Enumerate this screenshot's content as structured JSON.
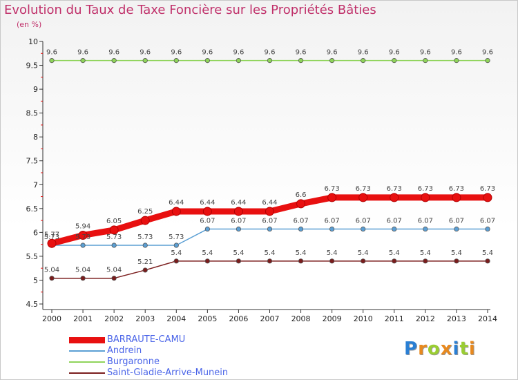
{
  "title": "Evolution du Taux de Taxe Foncière sur les Propriétés Bâties",
  "subtitle": "(en %)",
  "brand": {
    "letters": [
      "P",
      "r",
      "o",
      "x",
      "i",
      "t",
      "i"
    ],
    "colors": [
      "#2a7fd4",
      "#e8891e",
      "#9acd32",
      "#e8891e",
      "#2a7fd4",
      "#9acd32",
      "#e8891e"
    ]
  },
  "chart_data": {
    "type": "line",
    "x": [
      "2000",
      "2001",
      "2002",
      "2003",
      "2004",
      "2005",
      "2006",
      "2007",
      "2008",
      "2009",
      "2010",
      "2011",
      "2012",
      "2013",
      "2014"
    ],
    "ylim": [
      4.5,
      10
    ],
    "yticks": [
      "4.5",
      "5",
      "5.5",
      "6",
      "6.5",
      "7",
      "7.5",
      "8",
      "8.5",
      "9",
      "9.5",
      "10"
    ],
    "grid": false,
    "legend": "bottom-left",
    "series": [
      {
        "name": "Burgaronne",
        "color": "#8fd45a",
        "values": [
          9.6,
          9.6,
          9.6,
          9.6,
          9.6,
          9.6,
          9.6,
          9.6,
          9.6,
          9.6,
          9.6,
          9.6,
          9.6,
          9.6,
          9.6
        ],
        "labels": [
          "9.6",
          "9.6",
          "9.6",
          "9.6",
          "9.6",
          "9.6",
          "9.6",
          "9.6",
          "9.6",
          "9.6",
          "9.6",
          "9.6",
          "9.6",
          "9.6",
          "9.6"
        ]
      },
      {
        "name": "Andrein",
        "color": "#5b9fd4",
        "values": [
          5.73,
          5.73,
          5.73,
          5.73,
          5.73,
          6.07,
          6.07,
          6.07,
          6.07,
          6.07,
          6.07,
          6.07,
          6.07,
          6.07,
          6.07
        ],
        "labels": [
          "5.73",
          "5.73",
          "5.73",
          "5.73",
          "5.73",
          "6.07",
          "6.07",
          "6.07",
          "6.07",
          "6.07",
          "6.07",
          "6.07",
          "6.07",
          "6.07",
          "6.07"
        ]
      },
      {
        "name": "Saint-Gladie-Arrive-Munein",
        "color": "#7a1c1c",
        "values": [
          5.04,
          5.04,
          5.04,
          5.21,
          5.4,
          5.4,
          5.4,
          5.4,
          5.4,
          5.4,
          5.4,
          5.4,
          5.4,
          5.4,
          5.4
        ],
        "labels": [
          "5.04",
          "5.04",
          "5.04",
          "5.21",
          "5.4",
          "5.4",
          "5.4",
          "5.4",
          "5.4",
          "5.4",
          "5.4",
          "5.4",
          "5.4",
          "5.4",
          "5.4"
        ]
      },
      {
        "name": "BARRAUTE-CAMU",
        "color": "#e81010",
        "values": [
          5.77,
          5.94,
          6.05,
          6.25,
          6.44,
          6.44,
          6.44,
          6.44,
          6.6,
          6.73,
          6.73,
          6.73,
          6.73,
          6.73,
          6.73
        ],
        "labels": [
          "5.77",
          "5.94",
          "6.05",
          "6.25",
          "6.44",
          "6.44",
          "6.44",
          "6.44",
          "6.6",
          "6.73",
          "6.73",
          "6.73",
          "6.73",
          "6.73",
          "6.73"
        ]
      }
    ]
  },
  "legend": [
    {
      "label": "BARRAUTE-CAMU",
      "color": "#e81010",
      "width": 9
    },
    {
      "label": "Andrein",
      "color": "#5b9fd4",
      "width": 2
    },
    {
      "label": "Burgaronne",
      "color": "#8fd45a",
      "width": 2
    },
    {
      "label": "Saint-Gladie-Arrive-Munein",
      "color": "#7a1c1c",
      "width": 2
    }
  ]
}
